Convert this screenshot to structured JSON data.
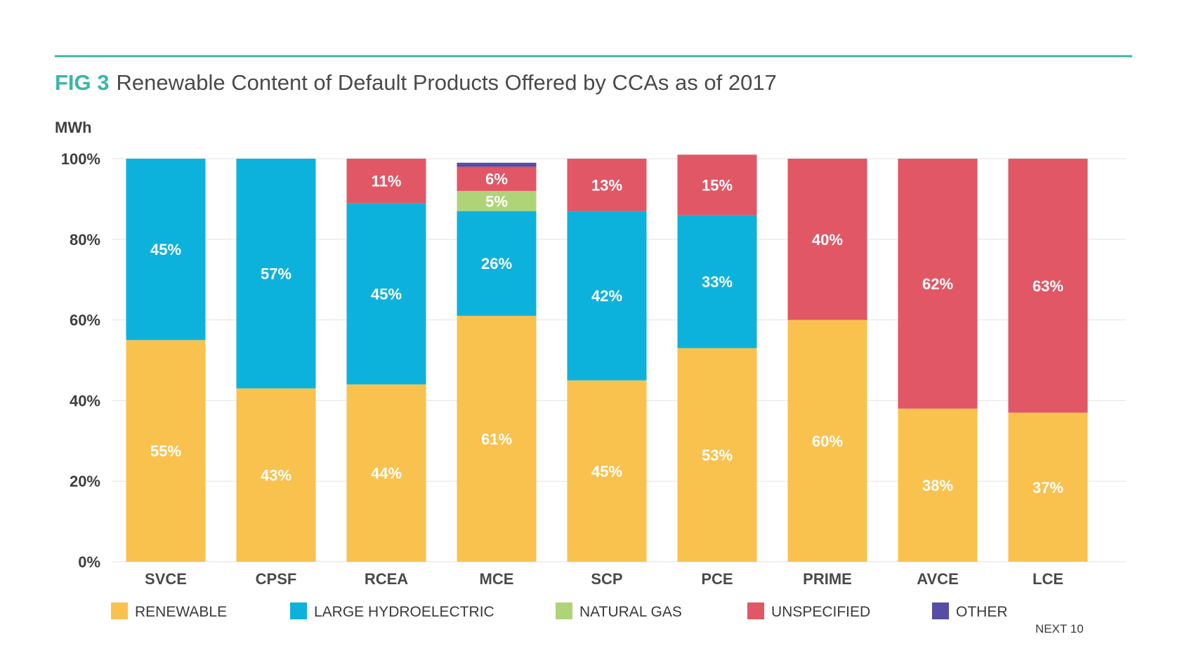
{
  "chart_data": {
    "type": "bar",
    "stacked": true,
    "fig_label": "FIG 3",
    "title": "Renewable Content of Default Products Offered by CCAs as of 2017",
    "ylabel": "MWh",
    "ylim": [
      0,
      100
    ],
    "y_ticks": [
      "0%",
      "20%",
      "40%",
      "60%",
      "80%",
      "100%"
    ],
    "categories": [
      "SVCE",
      "CPSF",
      "RCEA",
      "MCE",
      "SCP",
      "PCE",
      "PRIME",
      "AVCE",
      "LCE"
    ],
    "series": [
      {
        "name": "RENEWABLE",
        "color": "#f9c24f",
        "values": [
          55,
          43,
          44,
          61,
          45,
          53,
          60,
          38,
          37
        ]
      },
      {
        "name": "LARGE HYDROELECTRIC",
        "color": "#0db2dc",
        "values": [
          45,
          57,
          45,
          26,
          42,
          33,
          0,
          0,
          0
        ]
      },
      {
        "name": "NATURAL GAS",
        "color": "#afd478",
        "values": [
          0,
          0,
          0,
          5,
          0,
          0,
          0,
          0,
          0
        ]
      },
      {
        "name": "UNSPECIFIED",
        "color": "#e15766",
        "values": [
          0,
          0,
          11,
          6,
          13,
          15,
          40,
          62,
          63
        ]
      },
      {
        "name": "OTHER",
        "color": "#574da5",
        "values": [
          0,
          0,
          0,
          1,
          0,
          0,
          0,
          0,
          0
        ]
      }
    ],
    "data_labels": [
      [
        "55%",
        "43%",
        "44%",
        "61%",
        "45%",
        "53%",
        "60%",
        "38%",
        "37%"
      ],
      [
        "45%",
        "57%",
        "45%",
        "26%",
        "42%",
        "33%",
        "",
        "",
        ""
      ],
      [
        "",
        "",
        "",
        "5%",
        "",
        "",
        "",
        "",
        ""
      ],
      [
        "",
        "",
        "11%",
        "6%",
        "13%",
        "15%",
        "40%",
        "62%",
        "63%"
      ],
      [
        "",
        "",
        "",
        "",
        "",
        "",
        "",
        "",
        ""
      ]
    ],
    "grid": true,
    "legend_position": "bottom",
    "source_note": "NEXT 10",
    "colors": {
      "accent_rule": "#3ab7a5",
      "grid": "#e2e2e2"
    }
  }
}
